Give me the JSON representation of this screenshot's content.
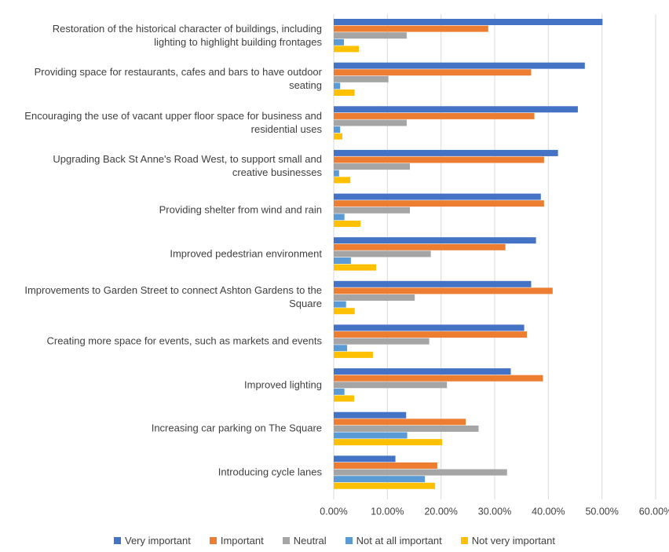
{
  "chart_data": {
    "type": "hbar",
    "categories": [
      "Restoration of the historical character of buildings, including lighting to highlight building frontages",
      "Providing space for restaurants, cafes and bars to have outdoor seating",
      "Encouraging the use of vacant upper floor space for business and residential uses",
      "Upgrading Back St Anne's Road West, to support small and creative businesses",
      "Providing shelter from wind and rain",
      "Improved pedestrian environment",
      "Improvements to Garden Street to connect Ashton Gardens to the Square",
      "Creating more space for events, such as markets and events",
      "Improved lighting",
      "Increasing car parking on The Square",
      "Introducing cycle lanes"
    ],
    "series": [
      {
        "name": "Very important",
        "color": "#4472c4",
        "values": [
          50.1,
          46.8,
          45.5,
          41.8,
          38.6,
          37.7,
          36.8,
          35.5,
          33.0,
          13.5,
          11.5
        ]
      },
      {
        "name": "Important",
        "color": "#ed7d31",
        "values": [
          28.8,
          36.8,
          37.4,
          39.2,
          39.2,
          32.0,
          40.8,
          36.0,
          39.0,
          24.6,
          19.3
        ]
      },
      {
        "name": "Neutral",
        "color": "#a5a5a5",
        "values": [
          13.6,
          10.2,
          13.6,
          14.2,
          14.2,
          18.1,
          15.1,
          17.8,
          21.1,
          27.0,
          32.3
        ]
      },
      {
        "name": "Not at all important",
        "color": "#5b9bd5",
        "values": [
          1.9,
          1.2,
          1.2,
          1.0,
          2.0,
          3.2,
          2.3,
          2.5,
          2.0,
          13.7,
          17.0
        ]
      },
      {
        "name": "Not very important",
        "color": "#ffc000",
        "values": [
          4.7,
          3.9,
          1.6,
          3.1,
          5.0,
          7.9,
          3.9,
          7.3,
          3.8,
          20.2,
          18.9
        ]
      }
    ],
    "xlim": [
      0,
      60
    ],
    "xticks": [
      {
        "value": 0,
        "label": "0.00%"
      },
      {
        "value": 10,
        "label": "10.00%"
      },
      {
        "value": 20,
        "label": "20.00%"
      },
      {
        "value": 30,
        "label": "30.00%"
      },
      {
        "value": 40,
        "label": "40.00%"
      },
      {
        "value": 50,
        "label": "50.00%"
      },
      {
        "value": 60,
        "label": "60.00%"
      }
    ],
    "grid": true,
    "legend": "bottom"
  }
}
